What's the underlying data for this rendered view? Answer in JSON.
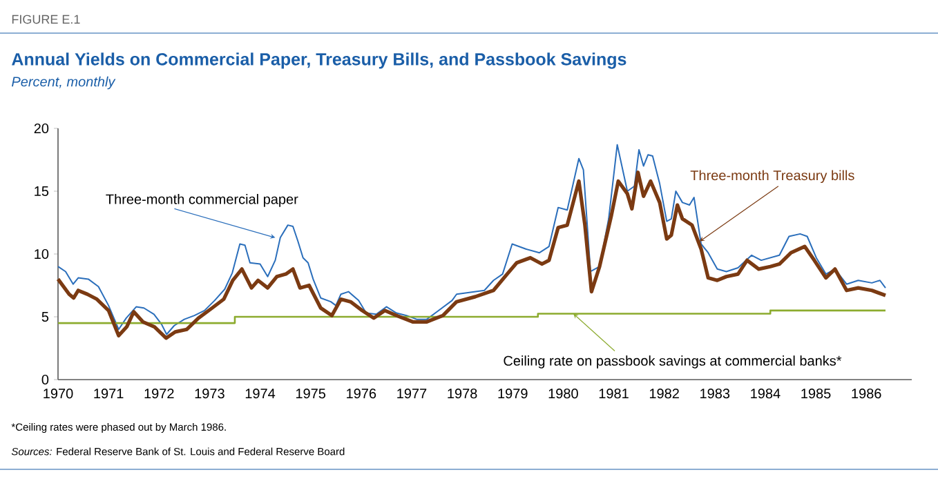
{
  "chart_data": {
    "type": "line",
    "title": "Annual Yields on Commercial Paper, Treasury Bills, and Passbook Savings",
    "subtitle": "Percent, monthly",
    "annotations": [
      "FIGURE E.1",
      "*Ceiling rates were phased out by March 1986.",
      "*Sources:* Federal Reserve Bank of St. Louis and Federal Reserve Board"
    ],
    "xlim": [
      1970,
      1986.9
    ],
    "ylim": [
      0,
      20
    ],
    "xticks": [
      1970,
      1971,
      1972,
      1973,
      1974,
      1975,
      1976,
      1977,
      1978,
      1979,
      1980,
      1981,
      1982,
      1983,
      1984,
      1985,
      1986
    ],
    "yticks": [
      0,
      5,
      10,
      15,
      20
    ],
    "grid": false,
    "marker": "none",
    "series": [
      {
        "name": "Three-month commercial paper",
        "type": "line",
        "color": "#2a6ebb",
        "x": [
          1970.0,
          1970.15,
          1970.3,
          1970.4,
          1970.6,
          1970.8,
          1971.0,
          1971.2,
          1971.35,
          1971.55,
          1971.7,
          1971.9,
          1972.05,
          1972.15,
          1972.3,
          1972.5,
          1972.7,
          1972.9,
          1973.1,
          1973.3,
          1973.45,
          1973.6,
          1973.7,
          1973.8,
          1974.0,
          1974.15,
          1974.3,
          1974.4,
          1974.55,
          1974.65,
          1974.75,
          1974.85,
          1974.95,
          1975.05,
          1975.2,
          1975.4,
          1975.5,
          1975.6,
          1975.75,
          1975.95,
          1976.1,
          1976.3,
          1976.5,
          1976.7,
          1976.9,
          1977.1,
          1977.3,
          1977.5,
          1977.8,
          1977.89,
          1978.44,
          1978.62,
          1978.8,
          1978.99,
          1979.26,
          1979.53,
          1979.72,
          1979.9,
          1980.08,
          1980.31,
          1980.4,
          1980.54,
          1980.72,
          1980.9,
          1981.07,
          1981.27,
          1981.41,
          1981.5,
          1981.59,
          1981.68,
          1981.77,
          1981.91,
          1982.05,
          1982.14,
          1982.23,
          1982.36,
          1982.5,
          1982.59,
          1982.73,
          1982.87,
          1983.05,
          1983.23,
          1983.46,
          1983.73,
          1983.92,
          1984.1,
          1984.28,
          1984.47,
          1984.69,
          1984.83,
          1985.01,
          1985.2,
          1985.38,
          1985.61,
          1985.84,
          1986.11,
          1986.27,
          1986.38
        ],
        "values": [
          9.0,
          8.6,
          7.6,
          8.1,
          8.0,
          7.4,
          5.9,
          4.0,
          4.9,
          5.8,
          5.7,
          5.2,
          4.4,
          3.6,
          4.3,
          4.8,
          5.1,
          5.5,
          6.3,
          7.2,
          8.5,
          10.8,
          10.7,
          9.3,
          9.2,
          8.2,
          9.5,
          11.3,
          12.3,
          12.2,
          11.0,
          9.7,
          9.3,
          8.0,
          6.5,
          6.2,
          5.9,
          6.8,
          7.0,
          6.3,
          5.3,
          5.2,
          5.8,
          5.3,
          5.1,
          4.8,
          4.8,
          5.4,
          6.3,
          6.8,
          7.1,
          7.9,
          8.4,
          10.8,
          10.4,
          10.1,
          10.6,
          13.7,
          13.5,
          17.6,
          16.7,
          8.6,
          9.0,
          12.8,
          18.7,
          15.0,
          15.4,
          18.3,
          17.0,
          17.9,
          17.8,
          15.6,
          12.6,
          12.8,
          15.0,
          14.1,
          13.9,
          14.5,
          10.8,
          10.1,
          8.8,
          8.6,
          8.9,
          9.9,
          9.5,
          9.7,
          9.9,
          11.4,
          11.6,
          11.4,
          9.7,
          8.4,
          8.8,
          7.6,
          7.9,
          7.7,
          7.9,
          7.3
        ]
      },
      {
        "name": "Three-month Treasury bills",
        "type": "line",
        "color": "#7b3a12",
        "x": [
          1970.0,
          1970.22,
          1970.31,
          1970.4,
          1970.58,
          1970.77,
          1971.0,
          1971.2,
          1971.36,
          1971.5,
          1971.68,
          1971.91,
          1972.14,
          1972.32,
          1972.55,
          1972.78,
          1973.05,
          1973.28,
          1973.46,
          1973.64,
          1973.83,
          1973.96,
          1974.15,
          1974.33,
          1974.51,
          1974.65,
          1974.79,
          1974.97,
          1975.2,
          1975.42,
          1975.6,
          1975.79,
          1976.02,
          1976.25,
          1976.47,
          1976.7,
          1977.02,
          1977.3,
          1977.62,
          1977.89,
          1978.26,
          1978.62,
          1978.89,
          1979.08,
          1979.35,
          1979.58,
          1979.72,
          1979.9,
          1980.08,
          1980.31,
          1980.43,
          1980.56,
          1980.72,
          1980.95,
          1981.09,
          1981.27,
          1981.36,
          1981.48,
          1981.59,
          1981.73,
          1981.91,
          1982.05,
          1982.14,
          1982.26,
          1982.36,
          1982.55,
          1982.73,
          1982.87,
          1983.05,
          1983.23,
          1983.46,
          1983.64,
          1983.87,
          1984.1,
          1984.28,
          1984.51,
          1984.78,
          1984.97,
          1985.2,
          1985.38,
          1985.61,
          1985.84,
          1986.11,
          1986.38
        ],
        "values": [
          8.0,
          6.8,
          6.5,
          7.1,
          6.8,
          6.4,
          5.5,
          3.5,
          4.2,
          5.4,
          4.6,
          4.2,
          3.3,
          3.8,
          4.0,
          4.9,
          5.7,
          6.4,
          7.9,
          8.8,
          7.3,
          7.9,
          7.3,
          8.2,
          8.4,
          8.8,
          7.3,
          7.5,
          5.7,
          5.1,
          6.4,
          6.2,
          5.5,
          4.9,
          5.5,
          5.1,
          4.6,
          4.6,
          5.1,
          6.2,
          6.6,
          7.1,
          8.4,
          9.3,
          9.7,
          9.2,
          9.5,
          12.1,
          12.3,
          15.8,
          12.3,
          7.0,
          9.0,
          13.0,
          15.8,
          14.8,
          13.6,
          16.5,
          14.6,
          15.8,
          14.1,
          11.2,
          11.5,
          13.9,
          12.8,
          12.3,
          10.4,
          8.1,
          7.9,
          8.2,
          8.4,
          9.5,
          8.8,
          9.0,
          9.2,
          10.1,
          10.6,
          9.5,
          8.1,
          8.8,
          7.1,
          7.3,
          7.1,
          6.7
        ]
      },
      {
        "name": "Ceiling rate on passbook savings at commercial banks*",
        "type": "step",
        "color": "#8cab2e",
        "x": [
          1970,
          1973.5,
          1979.5,
          1984.1,
          1986.38
        ],
        "values": [
          4.5,
          5.0,
          5.25,
          5.5,
          5.5
        ]
      }
    ]
  }
}
